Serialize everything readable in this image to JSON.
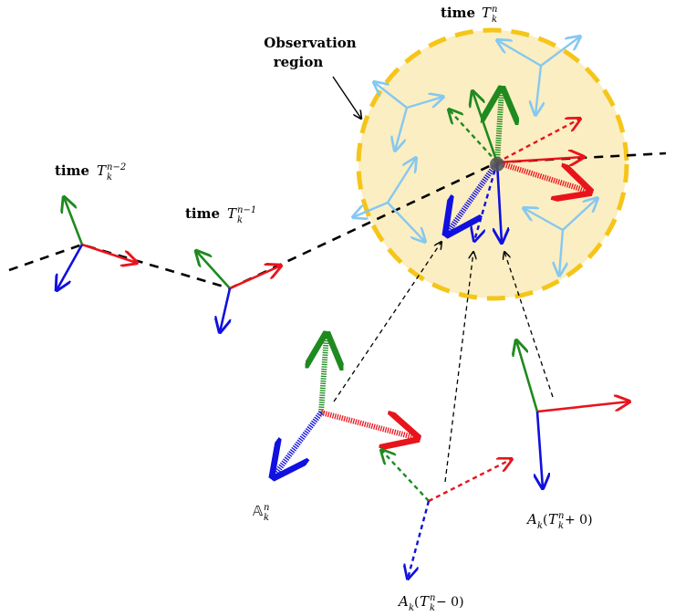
{
  "labels": {
    "time_prefix": "time",
    "T": "T",
    "k": "k",
    "n_minus_2": "n−2",
    "n_minus_1": "n−1",
    "n": "n",
    "observation_line1": "Observation",
    "observation_line2": "region",
    "A": "A",
    "open_paren": "(",
    "plus_zero": " + 0)",
    "minus_zero": " − 0)",
    "bb_A": "𝔸"
  },
  "colors": {
    "red": "#e8141c",
    "green": "#1f8a1f",
    "blue": "#1010e0",
    "light_blue": "#86c8f0",
    "region_fill": "#fbeec2",
    "region_border": "#f5c518",
    "dark_marker": "#555555"
  }
}
